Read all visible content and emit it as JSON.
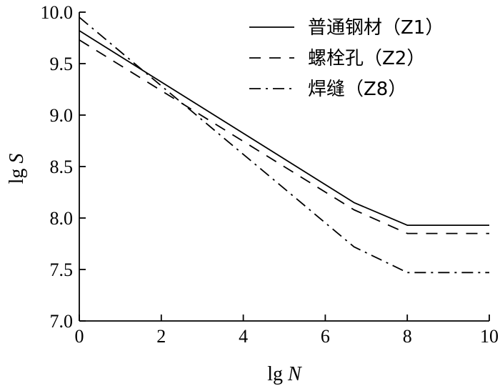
{
  "chart_data": {
    "type": "line",
    "xlabel_prefix": "lg ",
    "xlabel_var": "N",
    "ylabel_prefix": "lg ",
    "ylabel_var": "S",
    "xlim": [
      0,
      10
    ],
    "ylim": [
      7.0,
      10.0
    ],
    "x_ticks": [
      "0",
      "2",
      "4",
      "6",
      "8",
      "10"
    ],
    "y_ticks": [
      "7.0",
      "7.5",
      "8.0",
      "8.5",
      "9.0",
      "9.5",
      "10.0"
    ],
    "grid": false,
    "legend_position": "top-right",
    "series": [
      {
        "name": "普通钢材（Z1）",
        "style": "solid",
        "x": [
          0,
          6.7,
          8,
          10
        ],
        "y": [
          9.82,
          8.15,
          7.93,
          7.93
        ]
      },
      {
        "name": "螺栓孔（Z2）",
        "style": "dashed",
        "x": [
          0,
          6.7,
          8,
          10
        ],
        "y": [
          9.73,
          8.08,
          7.85,
          7.85
        ]
      },
      {
        "name": "焊缝（Z8）",
        "style": "dashdot",
        "x": [
          0,
          6.7,
          8,
          10
        ],
        "y": [
          9.95,
          7.72,
          7.47,
          7.47
        ]
      }
    ]
  }
}
